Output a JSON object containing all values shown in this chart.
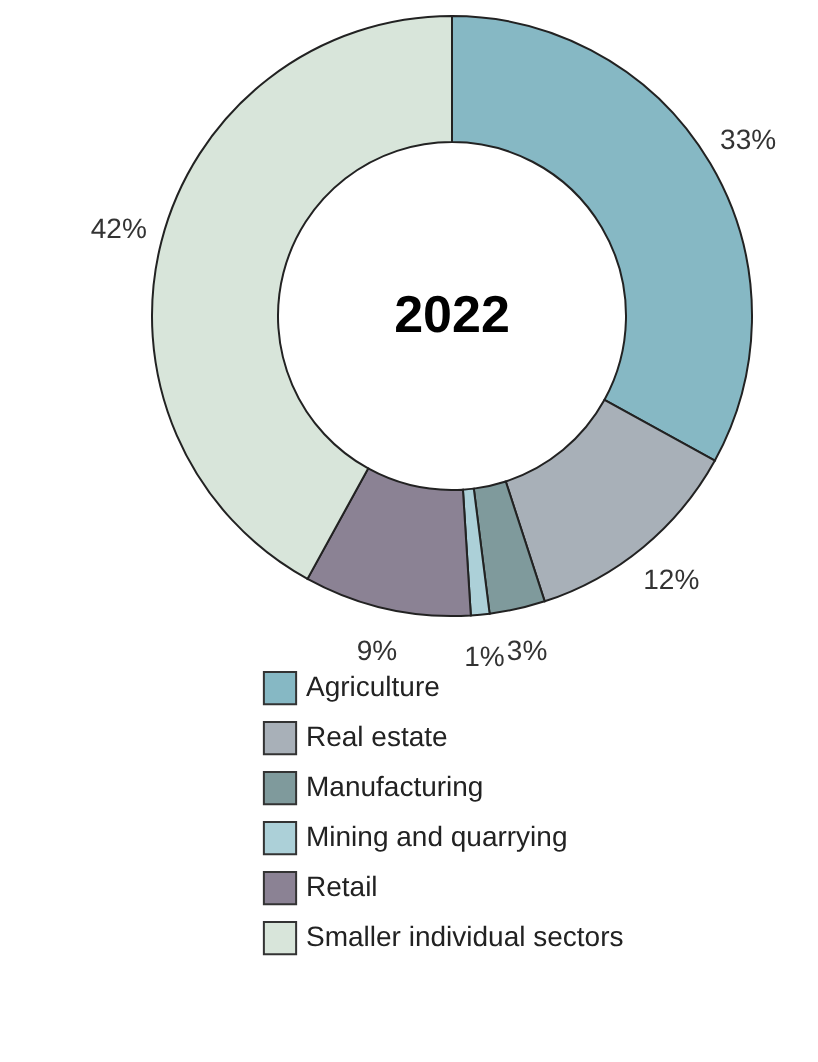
{
  "chart_data": {
    "type": "donut",
    "title": "2022",
    "categories": [
      "Agriculture",
      "Real estate",
      "Manufacturing",
      "Mining and quarrying",
      "Retail",
      "Smaller individual sectors"
    ],
    "values": [
      33,
      12,
      3,
      1,
      9,
      42
    ],
    "colors": [
      "#86b8c4",
      "#a8b0b8",
      "#7f9a9c",
      "#acd0d8",
      "#8b8294",
      "#d8e5da"
    ],
    "value_labels": [
      "33%",
      "12%",
      "3%",
      "1%",
      "9%",
      "42%"
    ],
    "legend": "bottom"
  }
}
